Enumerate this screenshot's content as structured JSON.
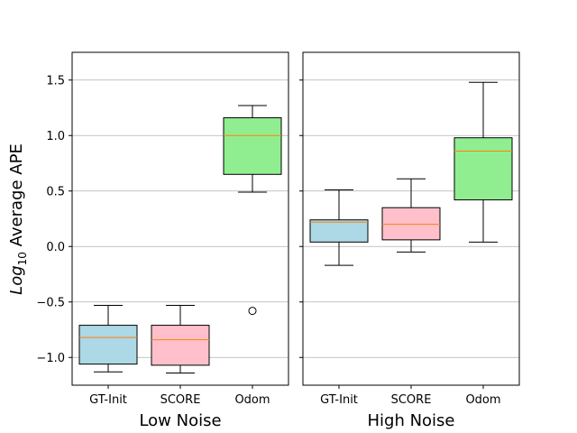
{
  "chart_data": [
    {
      "type": "box",
      "xlabel": "Low Noise",
      "ylabel_prefix": "Log",
      "ylabel_sub": "10",
      "ylabel_suffix": " Average APE",
      "ylim": [
        -1.25,
        1.75
      ],
      "yticks": [
        -1.0,
        -0.5,
        0.0,
        0.5,
        1.0,
        1.5
      ],
      "ytick_labels": [
        "−1.0",
        "−0.5",
        "0.0",
        "0.5",
        "1.0",
        "1.5"
      ],
      "grid": "horizontal",
      "categories": [
        "GT-Init",
        "SCORE",
        "Odom"
      ],
      "boxes": [
        {
          "whislo": -1.13,
          "q1": -1.06,
          "med": -0.82,
          "q3": -0.71,
          "whishi": -0.53,
          "fliers": [],
          "color": "#add8e6"
        },
        {
          "whislo": -1.14,
          "q1": -1.07,
          "med": -0.84,
          "q3": -0.71,
          "whishi": -0.53,
          "fliers": [],
          "color": "#ffc0cb"
        },
        {
          "whislo": 0.49,
          "q1": 0.65,
          "med": 1.0,
          "q3": 1.16,
          "whishi": 1.27,
          "fliers": [
            -0.58
          ],
          "color": "#90ee90"
        }
      ]
    },
    {
      "type": "box",
      "xlabel": "High Noise",
      "ylim": [
        -1.25,
        1.75
      ],
      "grid": "horizontal",
      "categories": [
        "GT-Init",
        "SCORE",
        "Odom"
      ],
      "boxes": [
        {
          "whislo": -0.17,
          "q1": 0.04,
          "med": 0.22,
          "q3": 0.24,
          "whishi": 0.51,
          "fliers": [],
          "color": "#add8e6"
        },
        {
          "whislo": -0.05,
          "q1": 0.06,
          "med": 0.2,
          "q3": 0.35,
          "whishi": 0.61,
          "fliers": [],
          "color": "#ffc0cb"
        },
        {
          "whislo": 0.04,
          "q1": 0.42,
          "med": 0.86,
          "q3": 0.98,
          "whishi": 1.48,
          "fliers": [],
          "color": "#90ee90"
        }
      ]
    }
  ],
  "style": {
    "median_color": "#ff7f0e",
    "grid_color": "#b0b0b0",
    "edge_color": "#000000"
  }
}
